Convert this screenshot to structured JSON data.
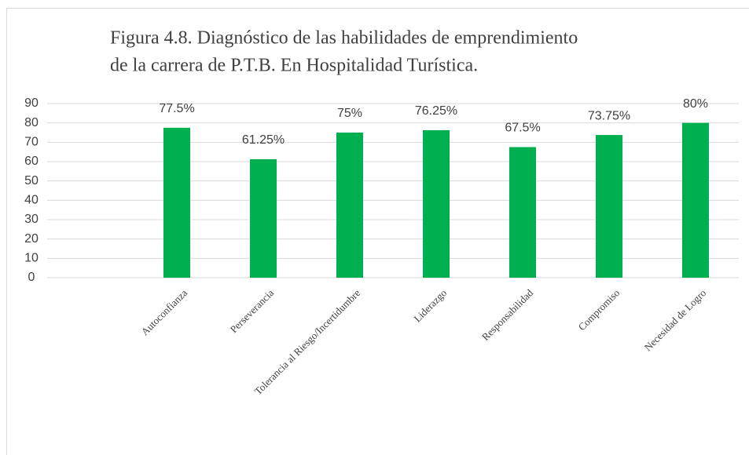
{
  "chart_data": {
    "type": "bar",
    "title": [
      "Figura 4.8. Diagnóstico de las habilidades de emprendimiento",
      "de la carrera de P.T.B. En Hospitalidad Turística."
    ],
    "categories": [
      null,
      "Autoconfianza",
      "Perseverancia",
      "Tolerancia al Riesgo/Incertidumbre",
      "Liderazgo",
      "Responsabilidad",
      "Compromiso",
      "Necesidad de Logro"
    ],
    "values": [
      null,
      77.5,
      61.25,
      75,
      76.25,
      67.5,
      73.75,
      80
    ],
    "value_labels": [
      null,
      "77.5%",
      "61.25%",
      "75%",
      "76.25%",
      "67.5%",
      "73.75%",
      "80%"
    ],
    "color": "#00b050",
    "ylim": [
      0,
      90
    ],
    "yticks": [
      0,
      10,
      20,
      30,
      40,
      50,
      60,
      70,
      80,
      90
    ],
    "grid": true
  }
}
